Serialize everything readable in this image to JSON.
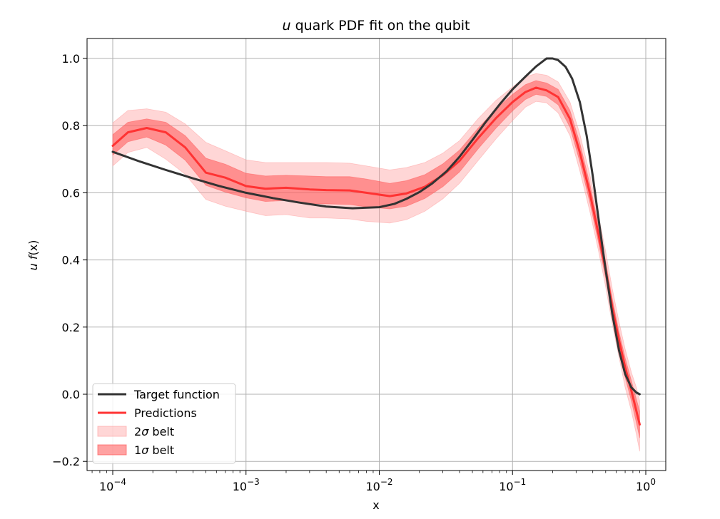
{
  "chart_data": {
    "type": "line",
    "title": {
      "italic": "u",
      "rest": " quark PDF fit on the qubit"
    },
    "xlabel": "x",
    "ylabel": {
      "italic_u": "u",
      "f": "f",
      "rest": "(x)"
    },
    "x_scale": "log",
    "xlim": [
      7e-05,
      1.5
    ],
    "ylim": [
      -0.22,
      1.06
    ],
    "grid": true,
    "x_ticks": [
      {
        "base": "10",
        "exp": "−4",
        "value": 0.0001
      },
      {
        "base": "10",
        "exp": "−3",
        "value": 0.001
      },
      {
        "base": "10",
        "exp": "−2",
        "value": 0.01
      },
      {
        "base": "10",
        "exp": "−1",
        "value": 0.1
      },
      {
        "base": "10",
        "exp": "0",
        "value": 1
      }
    ],
    "y_ticks": [
      {
        "label": "−0.2",
        "value": -0.2
      },
      {
        "label": "0.0",
        "value": 0.0
      },
      {
        "label": "0.2",
        "value": 0.2
      },
      {
        "label": "0.4",
        "value": 0.4
      },
      {
        "label": "0.6",
        "value": 0.6
      },
      {
        "label": "0.8",
        "value": 0.8
      },
      {
        "label": "1.0",
        "value": 1.0
      }
    ],
    "legend_position": "lower-left",
    "legend": [
      {
        "label": "Target function",
        "kind": "line",
        "color": "#333333"
      },
      {
        "label": "Predictions",
        "kind": "line",
        "color": "#ff3333"
      },
      {
        "label_pre": "2",
        "label_sym": "σ",
        "label_post": " belt",
        "kind": "band",
        "color": "#ff9999",
        "opacity": 0.4
      },
      {
        "label_pre": "1",
        "label_sym": "σ",
        "label_post": " belt",
        "kind": "band",
        "color": "#ff5555",
        "opacity": 0.55
      }
    ],
    "series": [
      {
        "name": "Target function",
        "color": "#333333",
        "x": [
          0.0001,
          0.00016,
          0.00025,
          0.0004,
          0.00063,
          0.001,
          0.0016,
          0.0025,
          0.004,
          0.0063,
          0.01,
          0.013,
          0.016,
          0.02,
          0.025,
          0.032,
          0.04,
          0.05,
          0.063,
          0.08,
          0.1,
          0.125,
          0.15,
          0.18,
          0.2,
          0.22,
          0.25,
          0.28,
          0.32,
          0.36,
          0.4,
          0.45,
          0.5,
          0.56,
          0.63,
          0.7,
          0.78,
          0.85,
          0.9
        ],
        "y": [
          0.722,
          0.693,
          0.668,
          0.643,
          0.62,
          0.6,
          0.584,
          0.571,
          0.559,
          0.554,
          0.557,
          0.567,
          0.582,
          0.602,
          0.628,
          0.664,
          0.707,
          0.757,
          0.811,
          0.863,
          0.908,
          0.946,
          0.976,
          1.0,
          1.0,
          0.995,
          0.975,
          0.94,
          0.87,
          0.77,
          0.65,
          0.5,
          0.37,
          0.24,
          0.13,
          0.06,
          0.02,
          0.005,
          0.0
        ]
      },
      {
        "name": "Predictions",
        "color": "#ff3333",
        "x": [
          0.0001,
          0.00013,
          0.00018,
          0.00025,
          0.00035,
          0.0005,
          0.0007,
          0.001,
          0.0014,
          0.002,
          0.003,
          0.004,
          0.006,
          0.008,
          0.012,
          0.016,
          0.022,
          0.03,
          0.04,
          0.055,
          0.075,
          0.1,
          0.125,
          0.15,
          0.18,
          0.22,
          0.27,
          0.32,
          0.38,
          0.44,
          0.5,
          0.56,
          0.63,
          0.7,
          0.78,
          0.85,
          0.9
        ],
        "y": [
          0.74,
          0.78,
          0.793,
          0.78,
          0.735,
          0.66,
          0.645,
          0.62,
          0.612,
          0.615,
          0.61,
          0.608,
          0.607,
          0.6,
          0.59,
          0.598,
          0.618,
          0.652,
          0.695,
          0.762,
          0.822,
          0.87,
          0.9,
          0.913,
          0.905,
          0.885,
          0.82,
          0.72,
          0.6,
          0.48,
          0.37,
          0.26,
          0.16,
          0.08,
          0.01,
          -0.05,
          -0.09
        ]
      },
      {
        "name": "2σ belt",
        "color": "#ff9999",
        "x": [
          0.0001,
          0.00013,
          0.00018,
          0.00025,
          0.00035,
          0.0005,
          0.0007,
          0.001,
          0.0014,
          0.002,
          0.003,
          0.004,
          0.006,
          0.008,
          0.012,
          0.016,
          0.022,
          0.03,
          0.04,
          0.055,
          0.075,
          0.1,
          0.125,
          0.15,
          0.18,
          0.22,
          0.27,
          0.32,
          0.38,
          0.44,
          0.5,
          0.56,
          0.63,
          0.7,
          0.78,
          0.85,
          0.9
        ],
        "lower": [
          0.68,
          0.72,
          0.735,
          0.7,
          0.655,
          0.58,
          0.56,
          0.545,
          0.532,
          0.535,
          0.525,
          0.525,
          0.522,
          0.515,
          0.51,
          0.52,
          0.545,
          0.582,
          0.628,
          0.695,
          0.76,
          0.815,
          0.855,
          0.872,
          0.868,
          0.838,
          0.77,
          0.665,
          0.545,
          0.43,
          0.32,
          0.21,
          0.11,
          0.02,
          -0.05,
          -0.12,
          -0.17
        ],
        "upper": [
          0.808,
          0.845,
          0.85,
          0.84,
          0.805,
          0.75,
          0.725,
          0.698,
          0.69,
          0.69,
          0.69,
          0.69,
          0.688,
          0.68,
          0.668,
          0.675,
          0.69,
          0.718,
          0.755,
          0.82,
          0.875,
          0.915,
          0.945,
          0.955,
          0.95,
          0.93,
          0.87,
          0.775,
          0.655,
          0.535,
          0.425,
          0.315,
          0.215,
          0.135,
          0.065,
          0.02,
          -0.02
        ]
      },
      {
        "name": "1σ belt",
        "color": "#ff5555",
        "x": [
          0.0001,
          0.00013,
          0.00018,
          0.00025,
          0.00035,
          0.0005,
          0.0007,
          0.001,
          0.0014,
          0.002,
          0.003,
          0.004,
          0.006,
          0.008,
          0.012,
          0.016,
          0.022,
          0.03,
          0.04,
          0.055,
          0.075,
          0.1,
          0.125,
          0.15,
          0.18,
          0.22,
          0.27,
          0.32,
          0.38,
          0.44,
          0.5,
          0.56,
          0.63,
          0.7,
          0.78,
          0.85,
          0.9
        ],
        "lower": [
          0.712,
          0.752,
          0.766,
          0.742,
          0.697,
          0.622,
          0.602,
          0.585,
          0.574,
          0.577,
          0.568,
          0.567,
          0.565,
          0.558,
          0.552,
          0.56,
          0.583,
          0.618,
          0.662,
          0.73,
          0.792,
          0.844,
          0.878,
          0.893,
          0.887,
          0.862,
          0.795,
          0.692,
          0.572,
          0.455,
          0.345,
          0.235,
          0.135,
          0.05,
          -0.02,
          -0.085,
          -0.13
        ],
        "upper": [
          0.773,
          0.81,
          0.82,
          0.81,
          0.77,
          0.703,
          0.685,
          0.658,
          0.65,
          0.652,
          0.65,
          0.648,
          0.648,
          0.641,
          0.628,
          0.636,
          0.654,
          0.686,
          0.727,
          0.792,
          0.849,
          0.893,
          0.922,
          0.934,
          0.927,
          0.908,
          0.845,
          0.748,
          0.627,
          0.505,
          0.395,
          0.285,
          0.185,
          0.108,
          0.04,
          -0.015,
          -0.05
        ]
      }
    ]
  }
}
